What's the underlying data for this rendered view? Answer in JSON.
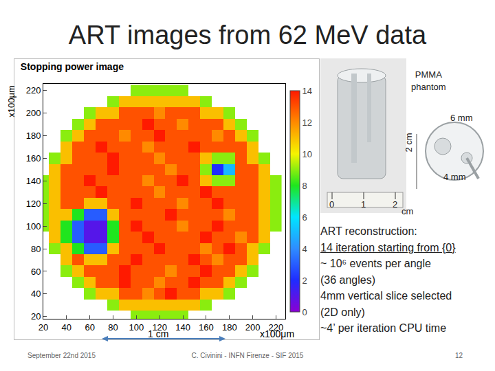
{
  "chart_data": {
    "type": "heatmap",
    "title": "Stopping power image",
    "x_label": "x100μm",
    "y_label": "x100μm",
    "x": [
      20,
      30,
      40,
      50,
      60,
      70,
      80,
      90,
      100,
      110,
      120,
      130,
      140,
      150,
      160,
      170,
      180,
      190,
      200,
      210,
      220
    ],
    "y": [
      20,
      30,
      40,
      50,
      60,
      70,
      80,
      90,
      100,
      110,
      120,
      130,
      140,
      150,
      160,
      170,
      180,
      190,
      200,
      210,
      220
    ],
    "cells": [
      [
        null,
        null,
        null,
        null,
        null,
        null,
        null,
        null,
        9,
        9,
        9,
        9,
        9,
        null,
        null,
        null,
        null,
        null,
        null,
        null,
        null
      ],
      [
        null,
        null,
        null,
        null,
        null,
        null,
        9,
        11,
        11,
        11,
        11,
        11,
        11,
        11,
        9,
        null,
        null,
        null,
        null,
        null,
        null
      ],
      [
        null,
        null,
        null,
        null,
        9,
        11,
        11,
        13,
        13,
        12,
        13,
        14,
        13,
        13,
        11,
        11,
        9,
        null,
        null,
        null,
        null
      ],
      [
        null,
        null,
        null,
        9,
        11,
        13,
        13,
        14,
        13,
        13,
        12,
        13,
        13,
        14,
        13,
        13,
        11,
        9,
        null,
        null,
        null
      ],
      [
        null,
        null,
        9,
        11,
        13,
        13,
        13,
        14,
        13,
        13,
        13,
        12,
        13,
        13,
        14,
        13,
        13,
        11,
        9,
        null,
        null
      ],
      [
        null,
        null,
        11,
        13,
        11,
        11,
        13,
        13,
        14,
        13,
        13,
        13,
        13,
        14,
        13,
        12,
        13,
        13,
        11,
        null,
        null
      ],
      [
        null,
        9,
        11,
        8,
        3,
        3,
        11,
        13,
        13,
        13,
        14,
        13,
        13,
        13,
        12,
        13,
        14,
        13,
        11,
        9,
        null
      ],
      [
        null,
        11,
        8,
        3,
        1,
        1,
        8,
        13,
        13,
        14,
        13,
        13,
        13,
        13,
        14,
        13,
        13,
        12,
        13,
        11,
        null
      ],
      [
        9,
        11,
        8,
        3,
        1,
        1,
        8,
        13,
        14,
        13,
        13,
        13,
        12,
        13,
        13,
        14,
        13,
        13,
        13,
        11,
        9
      ],
      [
        9,
        11,
        11,
        8,
        3,
        3,
        11,
        13,
        13,
        13,
        13,
        14,
        13,
        13,
        13,
        13,
        12,
        13,
        13,
        11,
        9
      ],
      [
        9,
        11,
        13,
        13,
        11,
        11,
        13,
        13,
        14,
        13,
        13,
        13,
        12,
        13,
        13,
        14,
        13,
        13,
        13,
        11,
        9
      ],
      [
        9,
        11,
        13,
        13,
        13,
        14,
        13,
        13,
        13,
        13,
        12,
        13,
        13,
        13,
        14,
        13,
        13,
        13,
        13,
        11,
        9
      ],
      [
        9,
        11,
        13,
        13,
        14,
        13,
        13,
        13,
        13,
        12,
        13,
        13,
        14,
        13,
        11,
        9,
        9,
        13,
        13,
        11,
        9
      ],
      [
        null,
        11,
        13,
        13,
        13,
        13,
        14,
        13,
        13,
        13,
        13,
        12,
        13,
        13,
        9,
        2,
        5,
        13,
        13,
        11,
        null
      ],
      [
        null,
        9,
        11,
        13,
        13,
        13,
        14,
        13,
        13,
        13,
        12,
        13,
        13,
        13,
        11,
        9,
        9,
        13,
        11,
        9,
        null
      ],
      [
        null,
        null,
        11,
        13,
        13,
        14,
        13,
        13,
        13,
        12,
        13,
        13,
        13,
        14,
        13,
        13,
        13,
        13,
        11,
        null,
        null
      ],
      [
        null,
        null,
        9,
        11,
        13,
        13,
        13,
        12,
        13,
        13,
        14,
        13,
        13,
        13,
        13,
        12,
        13,
        11,
        9,
        null,
        null
      ],
      [
        null,
        null,
        null,
        9,
        11,
        13,
        13,
        13,
        13,
        14,
        13,
        13,
        12,
        13,
        13,
        13,
        11,
        9,
        null,
        null,
        null
      ],
      [
        null,
        null,
        null,
        null,
        9,
        11,
        11,
        13,
        13,
        13,
        12,
        13,
        13,
        13,
        11,
        11,
        9,
        null,
        null,
        null,
        null
      ],
      [
        null,
        null,
        null,
        null,
        null,
        null,
        9,
        11,
        11,
        11,
        11,
        11,
        11,
        11,
        9,
        null,
        null,
        null,
        null,
        null,
        null
      ],
      [
        null,
        null,
        null,
        null,
        null,
        null,
        null,
        null,
        9,
        9,
        9,
        9,
        9,
        null,
        null,
        null,
        null,
        null,
        null,
        null,
        null
      ]
    ],
    "xlim": [
      20,
      228
    ],
    "ylim": [
      18,
      226
    ],
    "xticks": [
      20,
      40,
      60,
      80,
      100,
      120,
      140,
      160,
      180,
      200,
      220
    ],
    "yticks": [
      20,
      40,
      60,
      80,
      100,
      120,
      140,
      160,
      180,
      200,
      220
    ],
    "colorbar_range": [
      0,
      14
    ],
    "colorbar_ticks": [
      0,
      2,
      4,
      6,
      8,
      10,
      12,
      14
    ]
  },
  "slide": {
    "title": "ART images from 62 MeV data",
    "scale_label": "1 cm",
    "photo_label": [
      "PMMA",
      "phantom"
    ],
    "photo_texts": {
      "height": "2 cm",
      "outer": "6 mm",
      "inner": "4 mm",
      "ruler": [
        "0",
        "1",
        "2"
      ],
      "unit": "cm"
    },
    "notes": [
      {
        "text": "ART reconstruction:",
        "underline": false
      },
      {
        "text": "14 iteration starting from {0}",
        "underline": true
      },
      {
        "text": "~ 10⁶ events per angle",
        "underline": false
      },
      {
        "text": "(36 angles)",
        "underline": false
      },
      {
        "text": "4mm vertical slice selected",
        "underline": false
      },
      {
        "text": "(2D only)",
        "underline": false
      },
      {
        "text": "~4’ per iteration CPU time",
        "underline": false
      }
    ],
    "footer": {
      "left": "September 22nd 2015",
      "center": "C. Civinini - INFN Firenze - SIF 2015",
      "right": "12"
    }
  }
}
